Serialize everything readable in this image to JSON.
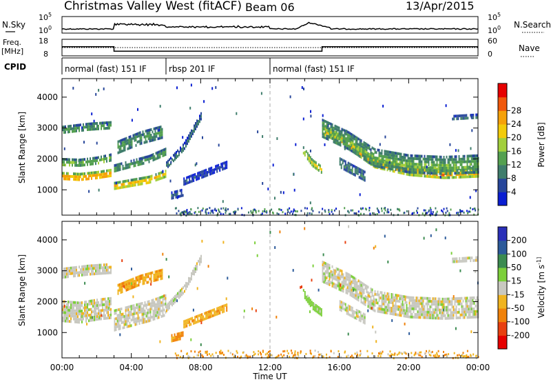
{
  "header": {
    "title": "Christmas Valley West (fitACF)",
    "beam": "Beam 06",
    "date": "13/Apr/2015"
  },
  "top_panels": {
    "nsky_label": "N.Sky",
    "nsky_ticks": [
      "10^5",
      "10^0"
    ],
    "nsearch_label": "N.Search",
    "freq_label": "Freq.",
    "freq_unit": "[MHz]",
    "freq_ticks": [
      "18",
      "8"
    ],
    "nave_ticks": [
      "60",
      "0"
    ],
    "nave_label": "Nave",
    "cpid_label": "CPID",
    "cpid_segments": [
      {
        "label": "normal (fast) 151 IF",
        "start_hour": 0,
        "end_hour": 6
      },
      {
        "label": "rbsp 201 IF",
        "start_hour": 6,
        "end_hour": 12
      },
      {
        "label": "normal (fast) 151 IF",
        "start_hour": 12,
        "end_hour": 24
      }
    ]
  },
  "axes": {
    "xlabel": "Time UT",
    "x_ticks": [
      "00:00",
      "04:00",
      "08:00",
      "12:00",
      "16:00",
      "20:00",
      "00:00"
    ],
    "ylabel": "Slant Range [km]",
    "y_ticks": [
      "1000",
      "2000",
      "3000",
      "4000"
    ]
  },
  "power_colorbar": {
    "label": "Power [dB]",
    "ticks": [
      "4",
      "8",
      "12",
      "16",
      "20",
      "24",
      "28"
    ],
    "colors": [
      "#0a1ed2",
      "#27469a",
      "#3f7d6c",
      "#54a050",
      "#a2cf3c",
      "#f2cb0a",
      "#f5a10a",
      "#f0580b",
      "#e60000"
    ]
  },
  "velocity_colorbar": {
    "label": "Velocity [m s^-1]",
    "ticks": [
      "200",
      "100",
      "50",
      "15",
      "-15",
      "-50",
      "-100",
      "-200"
    ],
    "colors": [
      "#2a2fb8",
      "#2c5a9a",
      "#3b8b50",
      "#7ccf3a",
      "#c8c8c0",
      "#f0b420",
      "#f0820a",
      "#e84010",
      "#e60000"
    ]
  },
  "chart_data": [
    {
      "type": "heatmap",
      "title": "Power",
      "xlabel": "Time UT",
      "ylabel": "Slant Range [km]",
      "xlim": [
        0,
        24
      ],
      "ylim": [
        180,
        4600
      ],
      "colorbar_label": "Power [dB]",
      "bands": [
        {
          "t": [
            0.0,
            1.0,
            2.0,
            2.8
          ],
          "center": [
            1450,
            1420,
            1480,
            1550
          ],
          "width": 260,
          "value": 26
        },
        {
          "t": [
            0.0,
            1.0,
            2.0,
            2.8
          ],
          "center": [
            1900,
            1880,
            1950,
            2050
          ],
          "width": 260,
          "value": 15
        },
        {
          "t": [
            0.0,
            1.5,
            2.8
          ],
          "center": [
            2950,
            3050,
            3100
          ],
          "width": 250,
          "value": 13
        },
        {
          "t": [
            3.0,
            4.0,
            5.0,
            6.0
          ],
          "center": [
            1150,
            1250,
            1350,
            1550
          ],
          "width": 220,
          "value": 23
        },
        {
          "t": [
            3.0,
            4.0,
            5.0,
            6.0
          ],
          "center": [
            1700,
            1850,
            2000,
            2250
          ],
          "width": 260,
          "value": 13
        },
        {
          "t": [
            3.2,
            4.5,
            5.8
          ],
          "center": [
            2400,
            2700,
            2900
          ],
          "width": 400,
          "value": 12
        },
        {
          "t": [
            6.0,
            7.0,
            8.0
          ],
          "center": [
            1800,
            2400,
            3400
          ],
          "width": 250,
          "value": 9
        },
        {
          "t": [
            6.3,
            7.0
          ],
          "center": [
            850,
            950
          ],
          "width": 200,
          "value": 7
        },
        {
          "t": [
            7.0,
            9.5
          ],
          "center": [
            1300,
            1850
          ],
          "width": 200,
          "value": 5
        },
        {
          "t": [
            13.9,
            14.4,
            15.0
          ],
          "center": [
            2300,
            1900,
            1650
          ],
          "width": 220,
          "value": 20
        },
        {
          "t": [
            15.0,
            16.5,
            18.0,
            20.0,
            22.0,
            24.0
          ],
          "center": [
            3000,
            2500,
            1900,
            1650,
            1550,
            1600
          ],
          "width": 300,
          "value": 25
        },
        {
          "t": [
            15.0,
            16.5,
            18.0,
            20.0,
            22.0,
            24.0
          ],
          "center": [
            3000,
            2600,
            2050,
            1850,
            1800,
            1850
          ],
          "width": 600,
          "value": 14
        },
        {
          "t": [
            16.0,
            17.5
          ],
          "center": [
            1900,
            1450
          ],
          "width": 300,
          "value": 10
        },
        {
          "t": [
            22.5,
            24.0
          ],
          "center": [
            3350,
            3400
          ],
          "width": 150,
          "value": 9
        }
      ]
    },
    {
      "type": "heatmap",
      "title": "Velocity",
      "xlabel": "Time UT",
      "ylabel": "Slant Range [km]",
      "xlim": [
        0,
        24
      ],
      "ylim": [
        180,
        4600
      ],
      "colorbar_label": "Velocity [m s^-1]",
      "bands": [
        {
          "t": [
            0.0,
            1.0,
            2.0,
            2.8
          ],
          "center": [
            1700,
            1650,
            1750,
            1800
          ],
          "width": 700,
          "value": 0
        },
        {
          "t": [
            0.0,
            1.5,
            2.8
          ],
          "center": [
            2950,
            3050,
            3100
          ],
          "width": 300,
          "value": 0
        },
        {
          "t": [
            3.0,
            4.0,
            5.0,
            6.0
          ],
          "center": [
            1400,
            1550,
            1700,
            1900
          ],
          "width": 700,
          "value": 0
        },
        {
          "t": [
            3.2,
            4.5,
            5.8
          ],
          "center": [
            2400,
            2700,
            2900
          ],
          "width": 350,
          "value": -40
        },
        {
          "t": [
            6.0,
            7.0,
            8.0
          ],
          "center": [
            1800,
            2400,
            3400
          ],
          "width": 250,
          "value": 0
        },
        {
          "t": [
            6.3,
            7.0
          ],
          "center": [
            850,
            950
          ],
          "width": 200,
          "value": -60
        },
        {
          "t": [
            7.0,
            9.5
          ],
          "center": [
            1300,
            1850
          ],
          "width": 200,
          "value": -40
        },
        {
          "t": [
            13.9,
            14.4,
            15.0
          ],
          "center": [
            2300,
            1900,
            1650
          ],
          "width": 220,
          "value": 30
        },
        {
          "t": [
            15.0,
            16.5,
            18.0,
            20.0,
            22.0,
            24.0
          ],
          "center": [
            3000,
            2600,
            2050,
            1850,
            1800,
            1850
          ],
          "width": 650,
          "value": 0
        },
        {
          "t": [
            16.0,
            17.5
          ],
          "center": [
            1900,
            1450
          ],
          "width": 300,
          "value": 0
        },
        {
          "t": [
            22.5,
            24.0
          ],
          "center": [
            3350,
            3400
          ],
          "width": 150,
          "value": 0
        }
      ]
    }
  ]
}
